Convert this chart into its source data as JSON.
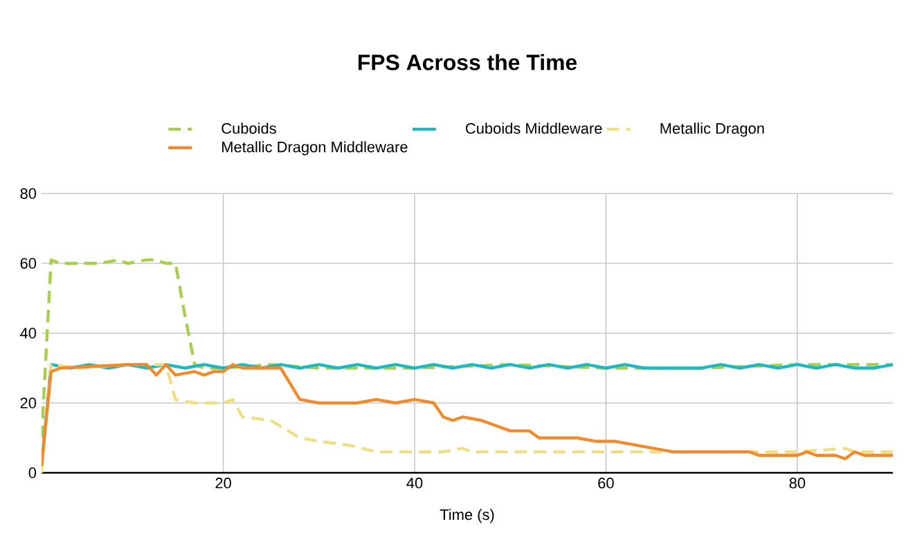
{
  "chart_data": {
    "type": "line",
    "title": "FPS Across the Time",
    "xlabel": "Time (s)",
    "xlim": [
      1,
      90
    ],
    "xticks": [
      20,
      40,
      60,
      80
    ],
    "ylim": [
      0,
      80
    ],
    "yticks": [
      0,
      20,
      40,
      60,
      80
    ],
    "grid": true,
    "legend": "top",
    "marker": "none",
    "series": [
      {
        "name": "Cuboids",
        "color": "#a5cf4d",
        "line_style": "dashed",
        "x": [
          1,
          2,
          3,
          5,
          7,
          9,
          10,
          12,
          13,
          14,
          15,
          16,
          17,
          18,
          20,
          25,
          30,
          40,
          50,
          60,
          70,
          80,
          90
        ],
        "values": [
          10,
          61,
          60,
          60,
          60,
          61,
          60,
          61,
          61,
          60,
          60,
          45,
          31,
          30,
          30,
          31,
          30,
          30,
          31,
          30,
          30,
          31,
          31
        ]
      },
      {
        "name": "Cuboids Middleware",
        "color": "#1fb8c0",
        "line_style": "solid",
        "x": [
          1,
          2,
          4,
          6,
          8,
          10,
          12,
          14,
          16,
          18,
          20,
          22,
          24,
          26,
          28,
          30,
          32,
          34,
          36,
          38,
          40,
          42,
          44,
          46,
          48,
          50,
          52,
          54,
          56,
          58,
          60,
          62,
          64,
          66,
          68,
          70,
          72,
          74,
          76,
          78,
          80,
          82,
          84,
          86,
          88,
          90
        ],
        "values": [
          2,
          31,
          30,
          31,
          30,
          31,
          30,
          31,
          30,
          31,
          30,
          31,
          30,
          31,
          30,
          31,
          30,
          31,
          30,
          31,
          30,
          31,
          30,
          31,
          30,
          31,
          30,
          31,
          30,
          31,
          30,
          31,
          30,
          30,
          30,
          30,
          31,
          30,
          31,
          30,
          31,
          30,
          31,
          30,
          30,
          31
        ]
      },
      {
        "name": "Metallic Dragon",
        "color": "#f0de85",
        "line_style": "dashed",
        "x": [
          1,
          2,
          5,
          10,
          14,
          15,
          17,
          20,
          21,
          22,
          25,
          28,
          30,
          33,
          36,
          40,
          43,
          45,
          46,
          50,
          55,
          60,
          65,
          70,
          75,
          80,
          85,
          86,
          90
        ],
        "values": [
          0,
          31,
          30,
          31,
          31,
          21,
          20,
          20,
          21,
          16,
          15,
          10,
          9,
          8,
          6,
          6,
          6,
          7,
          6,
          6,
          6,
          6,
          6,
          6,
          6,
          6,
          7,
          6,
          6
        ]
      },
      {
        "name": "Metallic Dragon Middleware",
        "color": "#f08a2a",
        "line_style": "solid",
        "x": [
          1,
          2,
          3,
          10,
          12,
          13,
          14,
          15,
          17,
          18,
          19,
          20,
          21,
          22,
          26,
          28,
          30,
          34,
          36,
          38,
          40,
          42,
          43,
          44,
          45,
          47,
          50,
          52,
          53,
          57,
          59,
          61,
          63,
          65,
          67,
          75,
          76,
          80,
          81,
          82,
          84,
          85,
          86,
          87,
          90
        ],
        "values": [
          2,
          29,
          30,
          31,
          31,
          28,
          31,
          28,
          29,
          28,
          29,
          29,
          31,
          30,
          30,
          21,
          20,
          20,
          21,
          20,
          21,
          20,
          16,
          15,
          16,
          15,
          12,
          12,
          10,
          10,
          9,
          9,
          8,
          7,
          6,
          6,
          5,
          5,
          6,
          5,
          5,
          4,
          6,
          5,
          5
        ]
      }
    ]
  }
}
